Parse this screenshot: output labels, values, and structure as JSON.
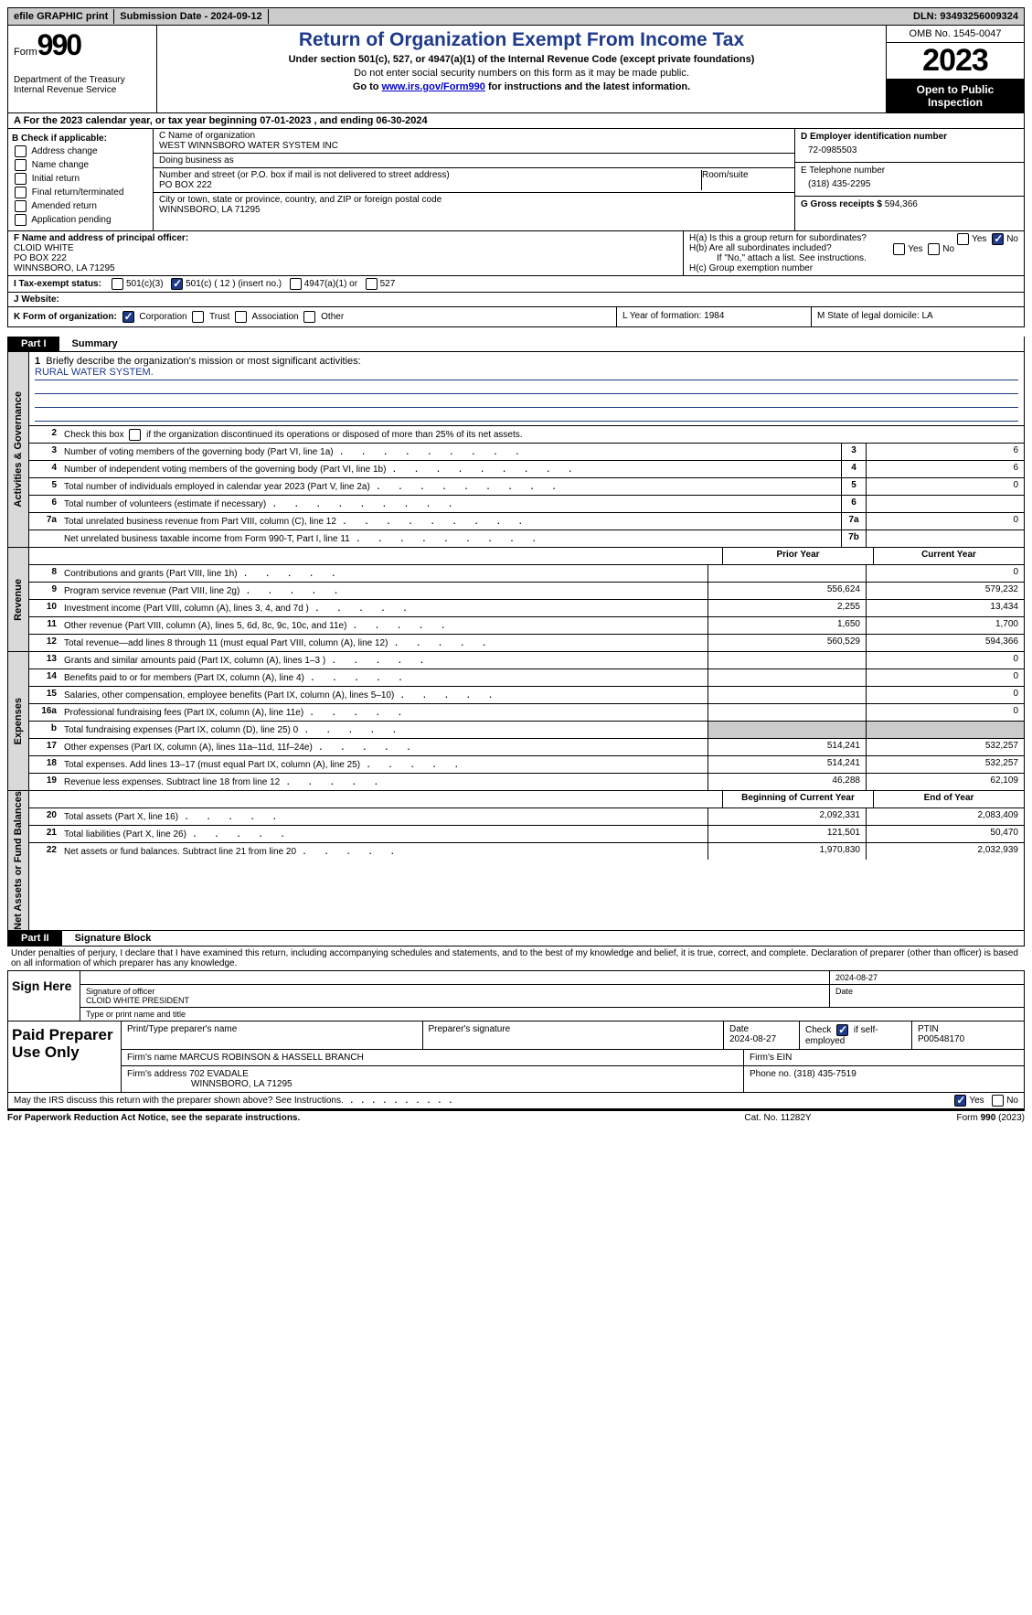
{
  "topbar": {
    "efile": "efile GRAPHIC print",
    "submission": "Submission Date - 2024-09-12",
    "dln": "DLN: 93493256009324"
  },
  "header": {
    "form_word": "Form",
    "form_num": "990",
    "dept": "Department of the Treasury Internal Revenue Service",
    "title": "Return of Organization Exempt From Income Tax",
    "sub1": "Under section 501(c), 527, or 4947(a)(1) of the Internal Revenue Code (except private foundations)",
    "sub2": "Do not enter social security numbers on this form as it may be made public.",
    "sub3_pre": "Go to ",
    "sub3_link": "www.irs.gov/Form990",
    "sub3_post": " for instructions and the latest information.",
    "omb": "OMB No. 1545-0047",
    "year": "2023",
    "open": "Open to Public Inspection"
  },
  "bar_a": "A For the 2023 calendar year, or tax year beginning 07-01-2023   , and ending 06-30-2024",
  "box_b": {
    "title": "B Check if applicable:",
    "opts": [
      "Address change",
      "Name change",
      "Initial return",
      "Final return/terminated",
      "Amended return",
      "Application pending"
    ]
  },
  "box_c": {
    "name_lab": "C Name of organization",
    "name": "WEST WINNSBORO WATER SYSTEM INC",
    "dba_lab": "Doing business as",
    "street_lab": "Number and street (or P.O. box if mail is not delivered to street address)",
    "room_lab": "Room/suite",
    "street": "PO BOX 222",
    "city_lab": "City or town, state or province, country, and ZIP or foreign postal code",
    "city": "WINNSBORO, LA   71295"
  },
  "box_d": {
    "ein_lab": "D Employer identification number",
    "ein": "72-0985503",
    "phone_lab": "E Telephone number",
    "phone": "(318) 435-2295",
    "gross_lab": "G Gross receipts $ ",
    "gross": "594,366"
  },
  "box_f": {
    "lab": "F  Name and address of principal officer:",
    "l1": "CLOID WHITE",
    "l2": "PO BOX 222",
    "l3": "WINNSBORO, LA  71295"
  },
  "box_h": {
    "ha": "H(a)  Is this a group return for subordinates?",
    "hb": "H(b)  Are all subordinates included?",
    "hb2": "If \"No,\" attach a list. See instructions.",
    "hc": "H(c)  Group exemption number "
  },
  "row_i": {
    "lab": "I  Tax-exempt status:",
    "o1": "501(c)(3)",
    "o2": "501(c) ( 12 ) (insert no.)",
    "o3": "4947(a)(1) or",
    "o4": "527"
  },
  "row_j": {
    "lab": "J  Website: "
  },
  "row_k": {
    "lab": "K Form of organization:",
    "opts": [
      "Corporation",
      "Trust",
      "Association",
      "Other"
    ]
  },
  "row_l": "L Year of formation: 1984",
  "row_m": "M State of legal domicile: LA",
  "part1": {
    "tag": "Part I",
    "title": "Summary"
  },
  "mission": {
    "lab": "Briefly describe the organization's mission or most significant activities:",
    "text": "RURAL WATER SYSTEM."
  },
  "line2": "Check this box      if the organization discontinued its operations or disposed of more than 25% of its net assets.",
  "section_gov": "Activities & Governance",
  "gov_rows": [
    {
      "n": "3",
      "d": "Number of voting members of the governing body (Part VI, line 1a)",
      "box": "3",
      "v": "6"
    },
    {
      "n": "4",
      "d": "Number of independent voting members of the governing body (Part VI, line 1b)",
      "box": "4",
      "v": "6"
    },
    {
      "n": "5",
      "d": "Total number of individuals employed in calendar year 2023 (Part V, line 2a)",
      "box": "5",
      "v": "0"
    },
    {
      "n": "6",
      "d": "Total number of volunteers (estimate if necessary)",
      "box": "6",
      "v": ""
    },
    {
      "n": "7a",
      "d": "Total unrelated business revenue from Part VIII, column (C), line 12",
      "box": "7a",
      "v": "0"
    },
    {
      "n": "",
      "d": "Net unrelated business taxable income from Form 990-T, Part I, line 11",
      "box": "7b",
      "v": ""
    }
  ],
  "section_rev": "Revenue",
  "rev_head": {
    "c1": "Prior Year",
    "c2": "Current Year"
  },
  "rev_rows": [
    {
      "n": "8",
      "d": "Contributions and grants (Part VIII, line 1h)",
      "p": "",
      "c": "0"
    },
    {
      "n": "9",
      "d": "Program service revenue (Part VIII, line 2g)",
      "p": "556,624",
      "c": "579,232"
    },
    {
      "n": "10",
      "d": "Investment income (Part VIII, column (A), lines 3, 4, and 7d )",
      "p": "2,255",
      "c": "13,434"
    },
    {
      "n": "11",
      "d": "Other revenue (Part VIII, column (A), lines 5, 6d, 8c, 9c, 10c, and 11e)",
      "p": "1,650",
      "c": "1,700"
    },
    {
      "n": "12",
      "d": "Total revenue—add lines 8 through 11 (must equal Part VIII, column (A), line 12)",
      "p": "560,529",
      "c": "594,366"
    }
  ],
  "section_exp": "Expenses",
  "exp_rows": [
    {
      "n": "13",
      "d": "Grants and similar amounts paid (Part IX, column (A), lines 1–3 )",
      "p": "",
      "c": "0"
    },
    {
      "n": "14",
      "d": "Benefits paid to or for members (Part IX, column (A), line 4)",
      "p": "",
      "c": "0"
    },
    {
      "n": "15",
      "d": "Salaries, other compensation, employee benefits (Part IX, column (A), lines 5–10)",
      "p": "",
      "c": "0"
    },
    {
      "n": "16a",
      "d": "Professional fundraising fees (Part IX, column (A), line 11e)",
      "p": "",
      "c": "0"
    },
    {
      "n": "b",
      "d": "Total fundraising expenses (Part IX, column (D), line 25) 0",
      "p": "gray",
      "c": "gray"
    },
    {
      "n": "17",
      "d": "Other expenses (Part IX, column (A), lines 11a–11d, 11f–24e)",
      "p": "514,241",
      "c": "532,257"
    },
    {
      "n": "18",
      "d": "Total expenses. Add lines 13–17 (must equal Part IX, column (A), line 25)",
      "p": "514,241",
      "c": "532,257"
    },
    {
      "n": "19",
      "d": "Revenue less expenses. Subtract line 18 from line 12",
      "p": "46,288",
      "c": "62,109"
    }
  ],
  "section_net": "Net Assets or Fund Balances",
  "net_head": {
    "c1": "Beginning of Current Year",
    "c2": "End of Year"
  },
  "net_rows": [
    {
      "n": "20",
      "d": "Total assets (Part X, line 16)",
      "p": "2,092,331",
      "c": "2,083,409"
    },
    {
      "n": "21",
      "d": "Total liabilities (Part X, line 26)",
      "p": "121,501",
      "c": "50,470"
    },
    {
      "n": "22",
      "d": "Net assets or fund balances. Subtract line 21 from line 20",
      "p": "1,970,830",
      "c": "2,032,939"
    }
  ],
  "part2": {
    "tag": "Part II",
    "title": "Signature Block"
  },
  "perjury": "Under penalties of perjury, I declare that I have examined this return, including accompanying schedules and statements, and to the best of my knowledge and belief, it is true, correct, and complete. Declaration of preparer (other than officer) is based on all information of which preparer has any knowledge.",
  "sign": {
    "left": "Sign Here",
    "date": "2024-08-27",
    "sig_lab": "Signature of officer",
    "name": "CLOID WHITE PRESIDENT",
    "type_lab": "Type or print name and title",
    "date_lab": "Date"
  },
  "prep": {
    "left": "Paid Preparer Use Only",
    "h1": "Print/Type preparer's name",
    "h2": "Preparer's signature",
    "h3": "Date",
    "h3v": "2024-08-27",
    "h4": "Check      if self-employed",
    "h5": "PTIN",
    "h5v": "P00548170",
    "firm_lab": "Firm's name   ",
    "firm": "MARCUS ROBINSON & HASSELL BRANCH",
    "ein_lab": "Firm's EIN ",
    "addr_lab": "Firm's address ",
    "addr1": "702 EVADALE",
    "addr2": "WINNSBORO, LA  71295",
    "phone_lab": "Phone no. ",
    "phone": "(318) 435-7519"
  },
  "may_discuss": "May the IRS discuss this return with the preparer shown above? See Instructions.",
  "footer": {
    "f1": "For Paperwork Reduction Act Notice, see the separate instructions.",
    "f2": "Cat. No. 11282Y",
    "f3_a": "Form ",
    "f3_b": "990",
    "f3_c": " (2023)"
  },
  "yesno": {
    "yes": "Yes",
    "no": "No"
  }
}
